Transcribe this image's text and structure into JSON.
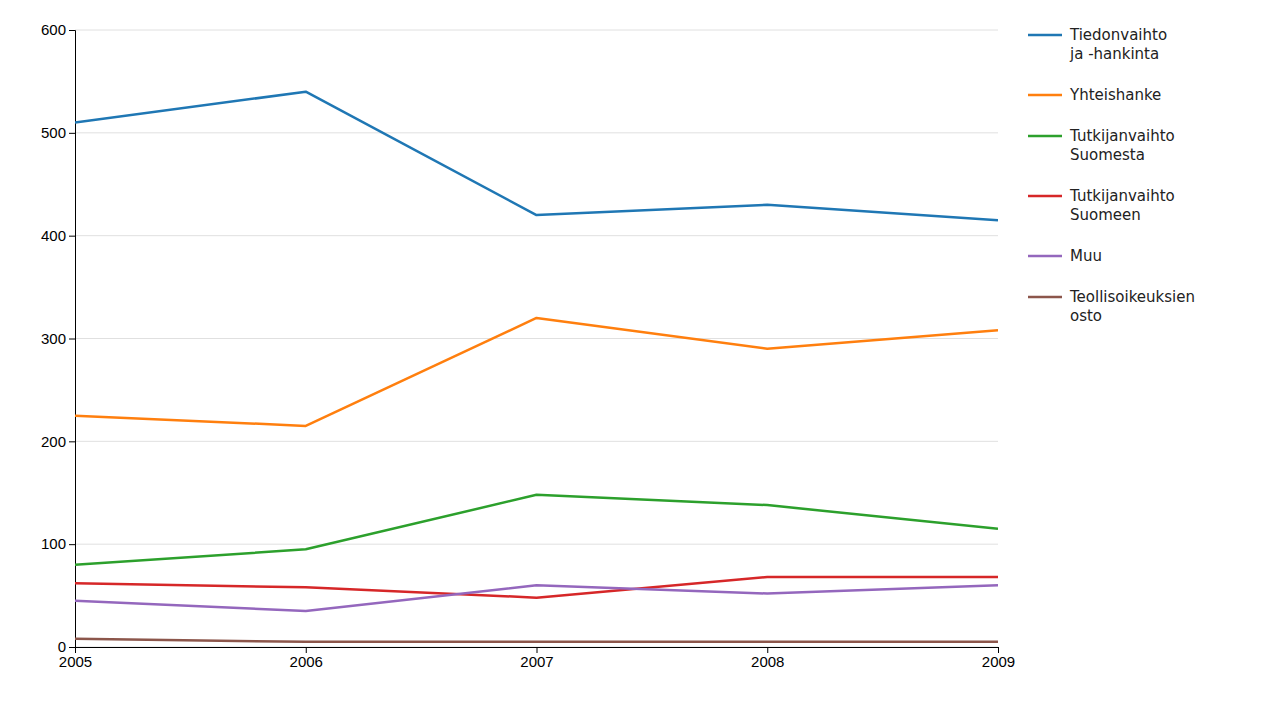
{
  "chart_data": {
    "type": "line",
    "x": [
      2005,
      2006,
      2007,
      2008,
      2009
    ],
    "xlim": [
      2005,
      2009
    ],
    "xticks": [
      2005,
      2006,
      2007,
      2008,
      2009
    ],
    "ylim": [
      0,
      600
    ],
    "yticks": [
      0,
      100,
      200,
      300,
      400,
      500,
      600
    ],
    "grid": true,
    "legend": "right",
    "series": [
      {
        "name": "Tiedonvaihto\nja -hankinta",
        "values": [
          510,
          540,
          420,
          430,
          415
        ]
      },
      {
        "name": "Yhteishanke",
        "values": [
          225,
          215,
          320,
          290,
          308
        ]
      },
      {
        "name": "Tutkijanvaihto\nSuomesta",
        "values": [
          80,
          95,
          148,
          138,
          115
        ]
      },
      {
        "name": "Tutkijanvaihto\nSuomeen",
        "values": [
          62,
          58,
          48,
          68,
          68
        ]
      },
      {
        "name": "Muu",
        "values": [
          45,
          35,
          60,
          52,
          60
        ]
      },
      {
        "name": "Teollisoikeuksien\nosto",
        "values": [
          8,
          5,
          5,
          5,
          5
        ]
      }
    ]
  }
}
